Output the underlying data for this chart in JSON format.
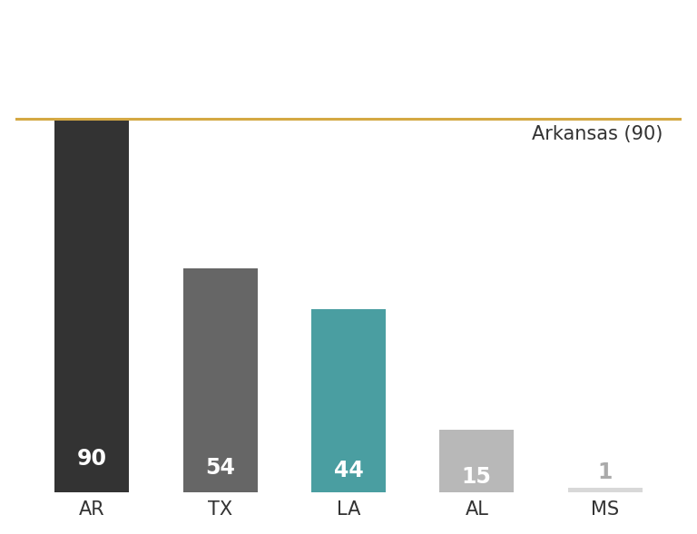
{
  "categories": [
    "AR",
    "TX",
    "LA",
    "AL",
    "MS"
  ],
  "values": [
    90,
    54,
    44,
    15,
    1
  ],
  "bar_colors": [
    "#333333",
    "#666666",
    "#4a9ea1",
    "#b8b8b8",
    "#d8d8d8"
  ],
  "value_label_colors": [
    "#ffffff",
    "#ffffff",
    "#ffffff",
    "#ffffff",
    "#aaaaaa"
  ],
  "reference_line_value": 90,
  "reference_line_color": "#d4a843",
  "reference_label": "Arkansas (90)",
  "reference_label_color": "#333333",
  "ylim": [
    0,
    115
  ],
  "background_color": "#ffffff",
  "bar_width": 0.58,
  "value_fontsize": 17,
  "category_fontsize": 15,
  "reference_fontsize": 15,
  "fig_width": 7.68,
  "fig_height": 5.89,
  "fig_dpi": 100
}
